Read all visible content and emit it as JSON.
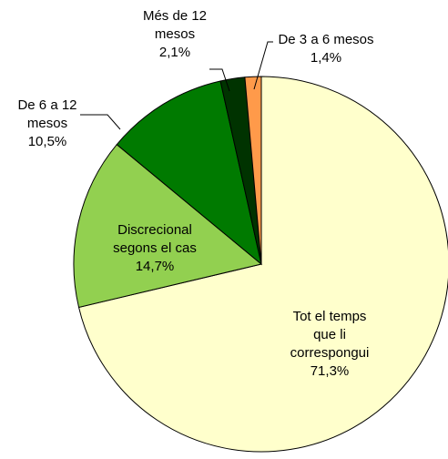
{
  "chart_data": {
    "type": "pie",
    "categories": [
      "Tot el temps\nque li\ncorrespongui",
      "Discrecional\nsegons el cas",
      "De 6 a 12\nmesos",
      "Més de 12\nmesos",
      "De 3 a 6 mesos"
    ],
    "values": [
      71.3,
      14.7,
      10.5,
      2.1,
      1.4
    ],
    "value_labels": [
      "71,3%",
      "14,7%",
      "10,5%",
      "2,1%",
      "1,4%"
    ],
    "colors": [
      "#ffffcc",
      "#92d050",
      "#007a00",
      "#003300",
      "#ff9a4a"
    ]
  }
}
